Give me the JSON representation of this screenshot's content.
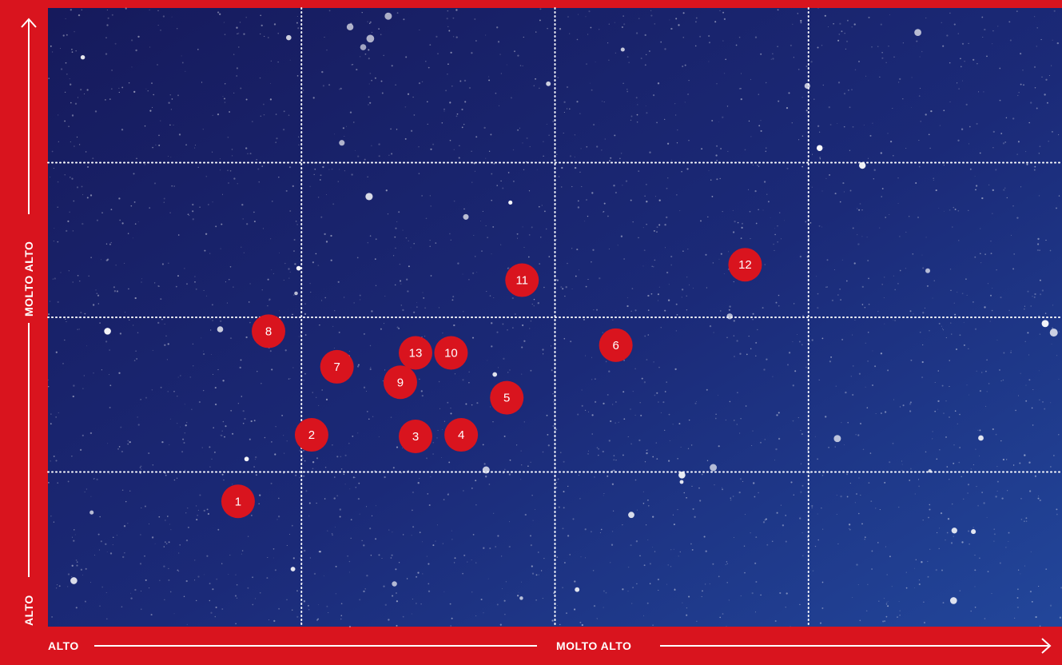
{
  "colors": {
    "frame": "#d9141e",
    "background_dark": "#161a5c",
    "background_light": "#22469a",
    "grid": "#ffffff",
    "marker": "#d9141e",
    "marker_text": "#ffffff"
  },
  "chart_data": {
    "type": "scatter",
    "title": "",
    "xlabel_low": "ALTO",
    "xlabel_high": "MOLTO ALTO",
    "ylabel_low": "ALTO",
    "ylabel_high": "MOLTO ALTO",
    "xlim": [
      0,
      4
    ],
    "ylim": [
      0,
      4
    ],
    "grid": true,
    "grid_style": "dotted",
    "background": "starfield",
    "points": [
      {
        "label": "1",
        "x": 0.75,
        "y": 0.81
      },
      {
        "label": "2",
        "x": 1.04,
        "y": 1.24
      },
      {
        "label": "3",
        "x": 1.45,
        "y": 1.23
      },
      {
        "label": "4",
        "x": 1.63,
        "y": 1.24
      },
      {
        "label": "5",
        "x": 1.81,
        "y": 1.48
      },
      {
        "label": "6",
        "x": 2.24,
        "y": 1.82
      },
      {
        "label": "7",
        "x": 1.14,
        "y": 1.68
      },
      {
        "label": "8",
        "x": 0.87,
        "y": 1.91
      },
      {
        "label": "9",
        "x": 1.39,
        "y": 1.58
      },
      {
        "label": "10",
        "x": 1.59,
        "y": 1.77
      },
      {
        "label": "11",
        "x": 1.87,
        "y": 2.24
      },
      {
        "label": "12",
        "x": 2.75,
        "y": 2.34
      },
      {
        "label": "13",
        "x": 1.45,
        "y": 1.77
      }
    ]
  }
}
